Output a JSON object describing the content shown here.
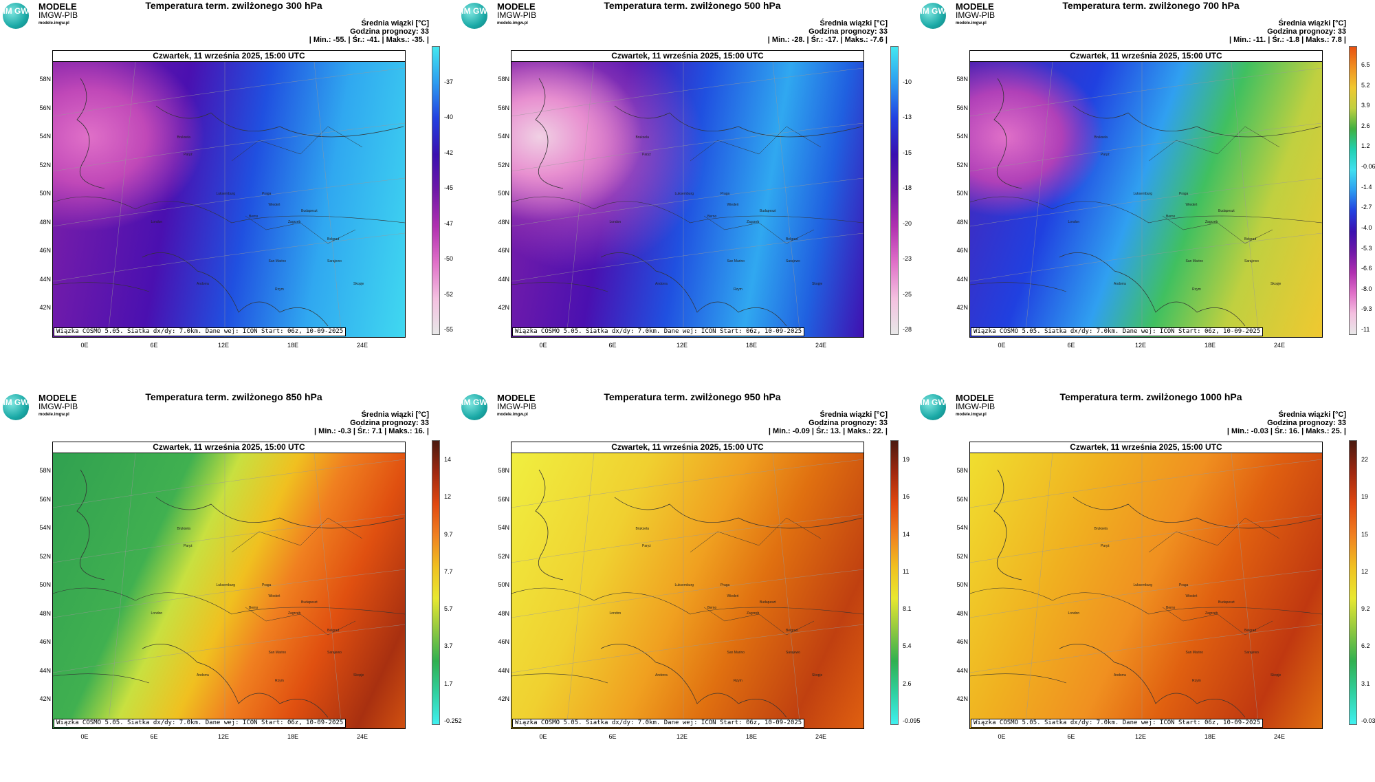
{
  "logo": {
    "circle": "IM GW",
    "line1": "MODELE",
    "line2": "IMGW-PIB",
    "line3": "modele.imgw.pl"
  },
  "common": {
    "date": "Czwartek, 11 września 2025, 15:00 UTC",
    "footer": "Wiązka COSMO 5.05. Siatka dx/dy: 7.0km. Dane wej: ICON Start: 06z, 10-09-2025",
    "info_line1": "Średnia wiązki [°C]",
    "info_line2": "Godzina prognozy: 33",
    "lat_labels": [
      "58N",
      "56N",
      "54N",
      "52N",
      "50N",
      "48N",
      "46N",
      "44N",
      "42N"
    ],
    "lon_labels": [
      "0E",
      "6E",
      "12E",
      "18E",
      "24E"
    ],
    "cities": [
      "London",
      "Bruksela",
      "Paryż",
      "Luksemburg",
      "Praga",
      "Wiedeń",
      "Budapeszt",
      "Berno",
      "Zagrzeb",
      "Belgrad",
      "San Marino",
      "Sarajewo",
      "Andorra",
      "Rzym",
      "Skopje"
    ]
  },
  "panels": [
    {
      "title": "Temperatura term. zwilżonego 300 hPa",
      "stats": "| Min.:    -55. | Śr.:    -41. | Maks.:    -35. |",
      "cb_labels": [
        "-37",
        "-40",
        "-42",
        "-45",
        "-47",
        "-50",
        "-52",
        "-55"
      ],
      "cb_colors": [
        "#44e8f0",
        "#2d9cf0",
        "#2240e0",
        "#3a10b0",
        "#7018a8",
        "#b030b0",
        "#e070c8",
        "#f4c0e0",
        "#e8e8e8"
      ]
    },
    {
      "title": "Temperatura term. zwilżonego 500 hPa",
      "stats": "| Min.:    -28. | Śr.:    -17. | Maks.:    -7.6 |",
      "cb_labels": [
        "-10",
        "-13",
        "-15",
        "-18",
        "-20",
        "-23",
        "-25",
        "-28"
      ],
      "cb_colors": [
        "#44e8f0",
        "#2d9cf0",
        "#2240e0",
        "#3a10b0",
        "#7018a8",
        "#b030b0",
        "#e070c8",
        "#f4c0e0",
        "#e8e8e8"
      ]
    },
    {
      "title": "Temperatura term. zwilżonego 700 hPa",
      "stats": "| Min.:    -11. | Śr.:    -1.8 | Maks.:    7.8 |",
      "cb_labels": [
        "6.5",
        "5.2",
        "3.9",
        "2.6",
        "1.2",
        "-0.065",
        "-1.4",
        "-2.7",
        "-4.0",
        "-5.3",
        "-6.6",
        "-8.0",
        "-9.3",
        "-11"
      ],
      "cb_colors": [
        "#e85010",
        "#f09020",
        "#f0c830",
        "#c0d040",
        "#40b040",
        "#20d0b0",
        "#40e0f0",
        "#2d9cf0",
        "#2240e0",
        "#3a10b0",
        "#7018a8",
        "#b030b0",
        "#e070c8",
        "#f4c0e0",
        "#e8e8e8"
      ]
    },
    {
      "title": "Temperatura term. zwilżonego 850 hPa",
      "stats": "| Min.:    -0.3 | Śr.:    7.1 | Maks.:    16. |",
      "cb_labels": [
        "14",
        "12",
        "9.7",
        "7.7",
        "5.7",
        "3.7",
        "1.7",
        "-0.252"
      ],
      "cb_colors": [
        "#4a1a10",
        "#a02810",
        "#e04810",
        "#f08020",
        "#f0c020",
        "#e8e830",
        "#90c840",
        "#30b050",
        "#30d0a0",
        "#40f0f0"
      ]
    },
    {
      "title": "Temperatura term. zwilżonego 950 hPa",
      "stats": "| Min.:    -0.09 | Śr.:    13. | Maks.:    22. |",
      "cb_labels": [
        "19",
        "16",
        "14",
        "11",
        "8.1",
        "5.4",
        "2.6",
        "-0.095"
      ],
      "cb_colors": [
        "#4a1a10",
        "#a02810",
        "#e04810",
        "#f08020",
        "#f0c020",
        "#e8e830",
        "#90c840",
        "#30b050",
        "#30d0a0",
        "#40f0f0"
      ]
    },
    {
      "title": "Temperatura term. zwilżonego 1000 hPa",
      "stats": "| Min.:    -0.03 | Śr.:    16. | Maks.:    25. |",
      "cb_labels": [
        "22",
        "19",
        "15",
        "12",
        "9.2",
        "6.2",
        "3.1",
        "-0.030"
      ],
      "cb_colors": [
        "#4a1a10",
        "#a02810",
        "#e04810",
        "#f08020",
        "#f0c020",
        "#e8e830",
        "#90c840",
        "#30b050",
        "#30d0a0",
        "#40f0f0"
      ]
    }
  ]
}
